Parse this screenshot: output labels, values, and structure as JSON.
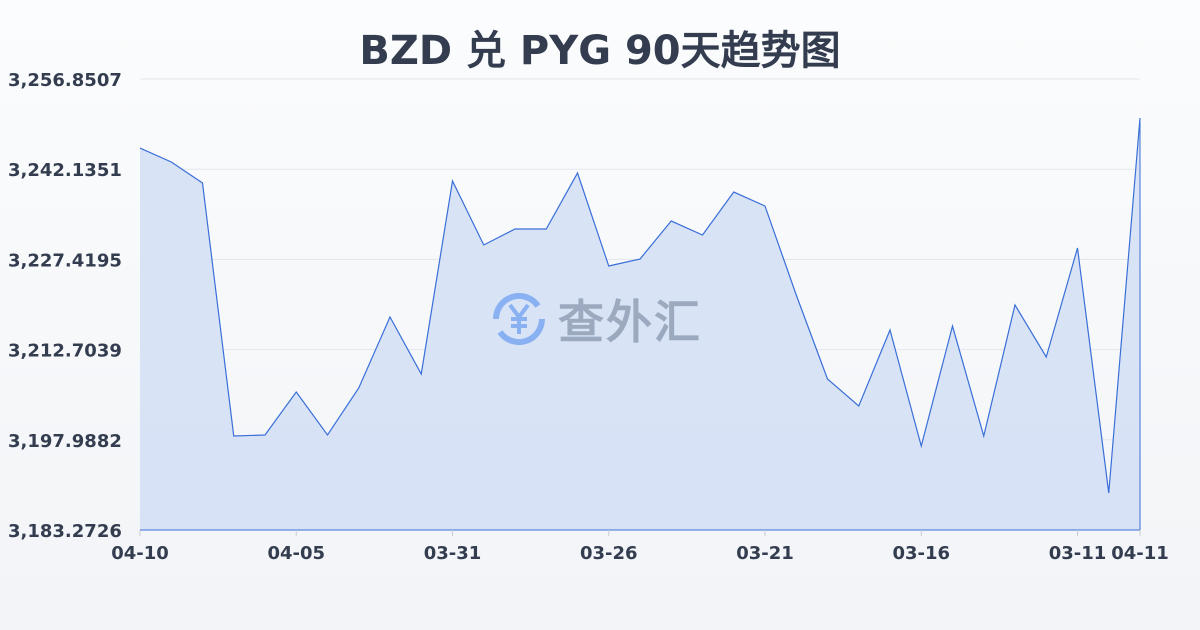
{
  "chart_data": {
    "type": "area",
    "title": "BZD 兑 PYG 90天趋势图",
    "xlabel": "",
    "ylabel": "",
    "x": [
      "04-10",
      "04-09",
      "04-08",
      "04-07",
      "04-06",
      "04-05",
      "04-04",
      "04-03",
      "04-02",
      "04-01",
      "03-31",
      "03-30",
      "03-29",
      "03-28",
      "03-27",
      "03-26",
      "03-25",
      "03-24",
      "03-23",
      "03-22",
      "03-21",
      "03-20",
      "03-19",
      "03-18",
      "03-17",
      "03-16",
      "03-15",
      "03-14",
      "03-13",
      "03-12",
      "03-11",
      "03-10",
      "04-11"
    ],
    "values": [
      3245.59,
      3243.31,
      3239.88,
      3198.61,
      3198.77,
      3205.79,
      3198.77,
      3206.44,
      3218.02,
      3208.72,
      3240.21,
      3229.77,
      3232.38,
      3232.38,
      3241.51,
      3226.34,
      3227.48,
      3233.68,
      3231.4,
      3238.41,
      3236.13,
      3221.61,
      3207.91,
      3203.5,
      3215.9,
      3196.98,
      3216.55,
      3198.61,
      3219.98,
      3211.5,
      3229.28,
      3189.31,
      3250.49
    ],
    "x_tick_labels": [
      {
        "index": 0,
        "label": "04-10"
      },
      {
        "index": 5,
        "label": "04-05"
      },
      {
        "index": 10,
        "label": "03-31"
      },
      {
        "index": 15,
        "label": "03-26"
      },
      {
        "index": 20,
        "label": "03-21"
      },
      {
        "index": 25,
        "label": "03-16"
      },
      {
        "index": 30,
        "label": "03-11"
      },
      {
        "index": 32,
        "label": "04-11"
      }
    ],
    "y_ticks": [
      3256.8507,
      3242.1351,
      3227.4195,
      3212.7039,
      3197.9882,
      3183.2726
    ],
    "y_tick_labels": [
      "3,256.8507",
      "3,242.1351",
      "3,227.4195",
      "3,212.7039",
      "3,197.9882",
      "3,183.2726"
    ],
    "ylim": [
      3183.2726,
      3256.8507
    ],
    "grid": true,
    "line_color": "#3a6fd8",
    "fill_color": "#d5e0f5"
  },
  "watermark": {
    "text": "查外汇",
    "icon": "yuan-exchange-icon",
    "color": "#4a8af0"
  }
}
